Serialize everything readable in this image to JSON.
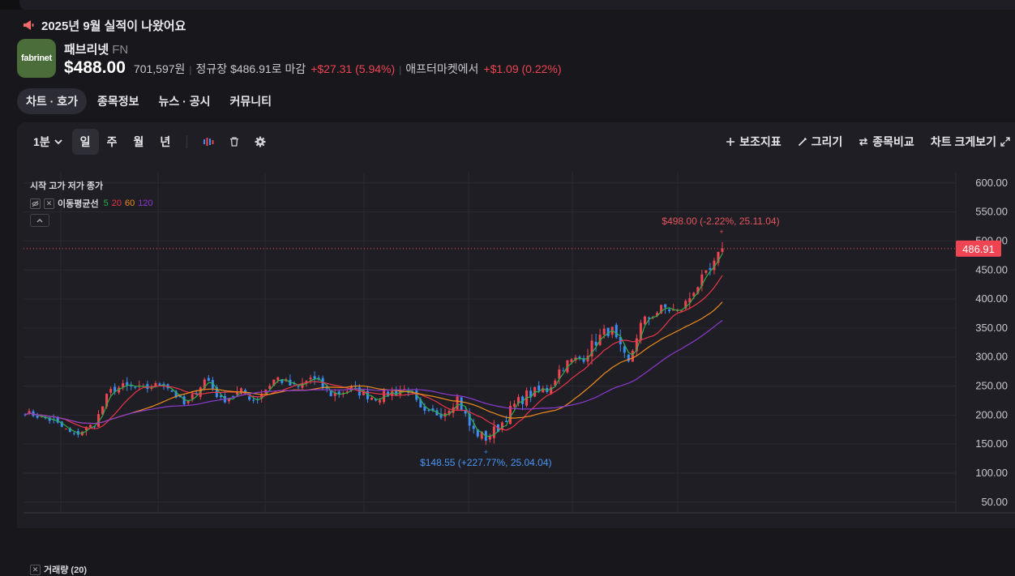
{
  "announcement": "2025년 9월 실적이 나왔어요",
  "stock": {
    "logo_text": "fabrinet",
    "name": "패브리넷",
    "ticker": "FN",
    "price": "$488.00",
    "price_krw": "701,597원",
    "regular_label": "정규장 $486.91로 마감",
    "regular_change": "+$27.31 (5.94%)",
    "after_label": "애프터마켓에서",
    "after_change": "+$1.09 (0.22%)"
  },
  "tabs": [
    {
      "label": "차트 · 호가",
      "active": true
    },
    {
      "label": "종목정보"
    },
    {
      "label": "뉴스 · 공시"
    },
    {
      "label": "커뮤니티"
    }
  ],
  "toolbar": {
    "interval": "1분",
    "periods": [
      "일",
      "주",
      "월",
      "년"
    ],
    "active_period": "일",
    "right": {
      "indicators": "보조지표",
      "draw": "그리기",
      "compare": "종목비교",
      "expand": "차트 크게보기"
    }
  },
  "legend": {
    "ohlc": "시작 고가 저가 종가",
    "ma_label": "이동평균선",
    "ma_periods": [
      {
        "label": "5",
        "color": "#2fae4a"
      },
      {
        "label": "20",
        "color": "#e8364a"
      },
      {
        "label": "60",
        "color": "#f08c1c"
      },
      {
        "label": "120",
        "color": "#8c3ad0"
      }
    ]
  },
  "volume_label": "거래량 (20)",
  "colors": {
    "up": "#f04452",
    "down": "#3a8ef6",
    "ma5": "#2fae4a",
    "ma20": "#e8364a",
    "ma60": "#f08c1c",
    "ma120": "#8c3ad0",
    "background": "#1e1e24"
  },
  "chart_data": {
    "type": "candlestick",
    "ylim": [
      50,
      600
    ],
    "y_ticks": [
      "600.00",
      "550.00",
      "500.00",
      "450.00",
      "400.00",
      "350.00",
      "300.00",
      "250.00",
      "200.00",
      "150.00",
      "100.00",
      "50.00"
    ],
    "current_price_label": "486.91",
    "current_price": 486.91,
    "annotations": {
      "high": {
        "label": "$498.00 (-2.22%, 25.11.04)",
        "value": 498
      },
      "low": {
        "label": "$148.55 (+227.77%, 25.04.04)",
        "value": 148.55
      }
    },
    "close_path": [
      [
        0,
        205
      ],
      [
        0.04,
        190
      ],
      [
        0.07,
        165
      ],
      [
        0.1,
        185
      ],
      [
        0.12,
        240
      ],
      [
        0.14,
        250
      ],
      [
        0.17,
        245
      ],
      [
        0.2,
        255
      ],
      [
        0.23,
        215
      ],
      [
        0.26,
        265
      ],
      [
        0.28,
        225
      ],
      [
        0.31,
        240
      ],
      [
        0.33,
        225
      ],
      [
        0.36,
        265
      ],
      [
        0.39,
        245
      ],
      [
        0.41,
        265
      ],
      [
        0.44,
        235
      ],
      [
        0.47,
        245
      ],
      [
        0.5,
        230
      ],
      [
        0.53,
        240
      ],
      [
        0.55,
        245
      ],
      [
        0.57,
        200
      ],
      [
        0.6,
        205
      ],
      [
        0.62,
        230
      ],
      [
        0.64,
        175
      ],
      [
        0.66,
        160
      ],
      [
        0.68,
        180
      ],
      [
        0.7,
        215
      ],
      [
        0.72,
        235
      ],
      [
        0.75,
        245
      ],
      [
        0.77,
        285
      ],
      [
        0.8,
        300
      ],
      [
        0.82,
        330
      ],
      [
        0.84,
        350
      ],
      [
        0.85,
        320
      ],
      [
        0.865,
        285
      ],
      [
        0.88,
        350
      ],
      [
        0.9,
        375
      ],
      [
        0.92,
        385
      ],
      [
        0.935,
        375
      ],
      [
        0.95,
        395
      ],
      [
        0.96,
        420
      ],
      [
        0.975,
        435
      ],
      [
        0.99,
        460
      ],
      [
        1.0,
        487
      ]
    ]
  }
}
